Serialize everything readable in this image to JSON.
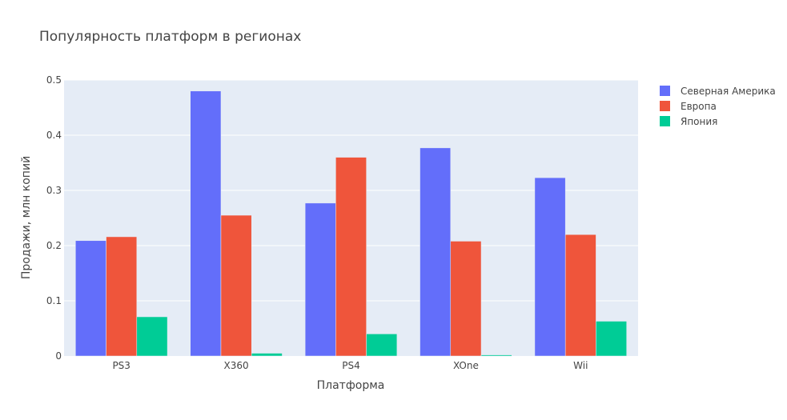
{
  "chart_data": {
    "type": "bar",
    "title": "Популярность платформ в регионах",
    "xlabel": "Платформа",
    "ylabel": "Продажи, млн копий",
    "categories": [
      "PS3",
      "X360",
      "PS4",
      "XOne",
      "Wii"
    ],
    "ylim": [
      0,
      0.5
    ],
    "yticks": [
      0,
      0.1,
      0.2,
      0.3,
      0.4,
      0.5
    ],
    "ytick_labels": [
      "0",
      "0.1",
      "0.2",
      "0.3",
      "0.4",
      "0.5"
    ],
    "grid": true,
    "legend_position": "top-right",
    "series": [
      {
        "name": "Северная Америка",
        "color": "#636efa",
        "values": [
          0.209,
          0.48,
          0.277,
          0.377,
          0.323
        ]
      },
      {
        "name": "Европа",
        "color": "#ef553b",
        "values": [
          0.216,
          0.255,
          0.36,
          0.208,
          0.22
        ]
      },
      {
        "name": "Япония",
        "color": "#00cc96",
        "values": [
          0.071,
          0.005,
          0.04,
          0.002,
          0.063
        ]
      }
    ]
  },
  "colors": {
    "plot_background": "#e5ecf6",
    "grid": "#ffffff",
    "text": "#444444"
  }
}
